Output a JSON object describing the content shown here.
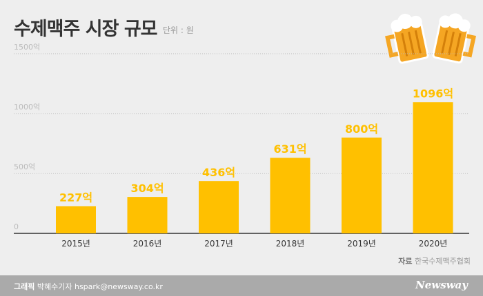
{
  "header": {
    "title": "수제맥주 시장 규모",
    "unit": "단위 : 원"
  },
  "chart_data": {
    "type": "bar",
    "title": "수제맥주 시장 규모",
    "categories": [
      "2015년",
      "2016년",
      "2017년",
      "2018년",
      "2019년",
      "2020년"
    ],
    "values": [
      227,
      304,
      436,
      631,
      800,
      1096
    ],
    "value_labels": [
      "227억",
      "304억",
      "436억",
      "631억",
      "800억",
      "1096억"
    ],
    "yticks": [
      0,
      500,
      1000,
      1500
    ],
    "ytick_labels": [
      "0",
      "500억",
      "1000억",
      "1500억"
    ],
    "ylim": [
      0,
      1500
    ],
    "xlabel": "",
    "ylabel": "",
    "grid": true,
    "bar_color": "#ffc000"
  },
  "source": {
    "label": "자료",
    "value": "한국수제맥주협회"
  },
  "footer": {
    "credit_label": "그래픽",
    "credit": "박혜수기자 hspark@newsway.co.kr",
    "logo": "Newsway"
  }
}
